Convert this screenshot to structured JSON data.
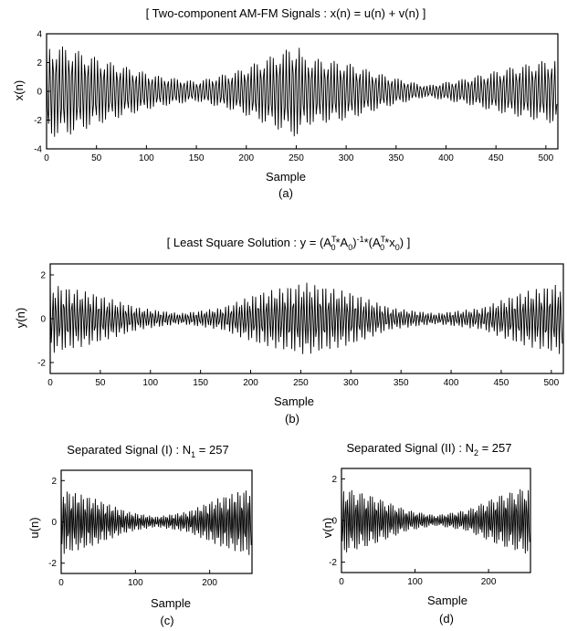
{
  "chart_data": [
    {
      "type": "line",
      "panel": "a",
      "title": "[ Two-component AM-FM Signals : x(n) = u(n) + v(n) ]",
      "xlabel": "Sample",
      "ylabel": "x(n)",
      "caption": "(a)",
      "xlim": [
        0,
        512
      ],
      "ylim": [
        -4,
        4
      ],
      "xticks": [
        0,
        50,
        100,
        150,
        200,
        250,
        300,
        350,
        400,
        450,
        500
      ],
      "yticks": [
        4,
        2,
        0,
        -2,
        -4
      ],
      "series": [
        {
          "n_samples": 512,
          "oscillation_cycles": 160,
          "envelope": [
            [
              0,
              3.2
            ],
            [
              20,
              3.1
            ],
            [
              60,
              2.1
            ],
            [
              110,
              1.1
            ],
            [
              150,
              0.7
            ],
            [
              190,
              1.4
            ],
            [
              230,
              2.6
            ],
            [
              254,
              3.3
            ],
            [
              256,
              2.4
            ],
            [
              300,
              2.0
            ],
            [
              340,
              1.1
            ],
            [
              380,
              0.4
            ],
            [
              420,
              0.9
            ],
            [
              460,
              1.6
            ],
            [
              511,
              2.3
            ]
          ]
        }
      ]
    },
    {
      "type": "line",
      "panel": "b",
      "title": "[ Least Square Solution : y = (A0T*A0)-1*(A0T*x0) ]",
      "xlabel": "Sample",
      "ylabel": "y(n)",
      "caption": "(b)",
      "xlim": [
        0,
        512
      ],
      "ylim": [
        -2.5,
        2.5
      ],
      "xticks": [
        0,
        50,
        100,
        150,
        200,
        250,
        300,
        350,
        400,
        450,
        500
      ],
      "yticks": [
        2,
        0,
        -2
      ],
      "series": [
        {
          "n_samples": 512,
          "oscillation_cycles": 190,
          "envelope": [
            [
              0,
              1.6
            ],
            [
              40,
              1.2
            ],
            [
              90,
              0.5
            ],
            [
              130,
              0.25
            ],
            [
              170,
              0.5
            ],
            [
              210,
              1.2
            ],
            [
              255,
              1.65
            ],
            [
              300,
              1.2
            ],
            [
              340,
              0.5
            ],
            [
              385,
              0.25
            ],
            [
              430,
              0.5
            ],
            [
              470,
              1.2
            ],
            [
              511,
              1.65
            ]
          ]
        }
      ]
    },
    {
      "type": "line",
      "panel": "c",
      "title": "Separated Signal (I) : N1 = 257",
      "xlabel": "Sample",
      "ylabel": "u(n)",
      "caption": "(c)",
      "xlim": [
        0,
        257
      ],
      "ylim": [
        -2.5,
        2.5
      ],
      "xticks": [
        0,
        100,
        200
      ],
      "yticks": [
        2,
        0,
        -2
      ],
      "series": [
        {
          "n_samples": 257,
          "oscillation_cycles": 95,
          "envelope": [
            [
              0,
              1.6
            ],
            [
              40,
              1.2
            ],
            [
              90,
              0.5
            ],
            [
              128,
              0.25
            ],
            [
              170,
              0.5
            ],
            [
              215,
              1.2
            ],
            [
              256,
              1.65
            ]
          ]
        }
      ]
    },
    {
      "type": "line",
      "panel": "d",
      "title": "Separated Signal (II) : N2 = 257",
      "xlabel": "Sample",
      "ylabel": "v(n)",
      "caption": "(d)",
      "xlim": [
        0,
        257
      ],
      "ylim": [
        -2.5,
        2.5
      ],
      "xticks": [
        0,
        100,
        200
      ],
      "yticks": [
        2,
        0,
        -2
      ],
      "series": [
        {
          "n_samples": 257,
          "oscillation_cycles": 92,
          "envelope": [
            [
              0,
              1.6
            ],
            [
              40,
              1.2
            ],
            [
              90,
              0.5
            ],
            [
              128,
              0.25
            ],
            [
              170,
              0.5
            ],
            [
              215,
              1.2
            ],
            [
              256,
              1.65
            ]
          ]
        }
      ]
    }
  ]
}
